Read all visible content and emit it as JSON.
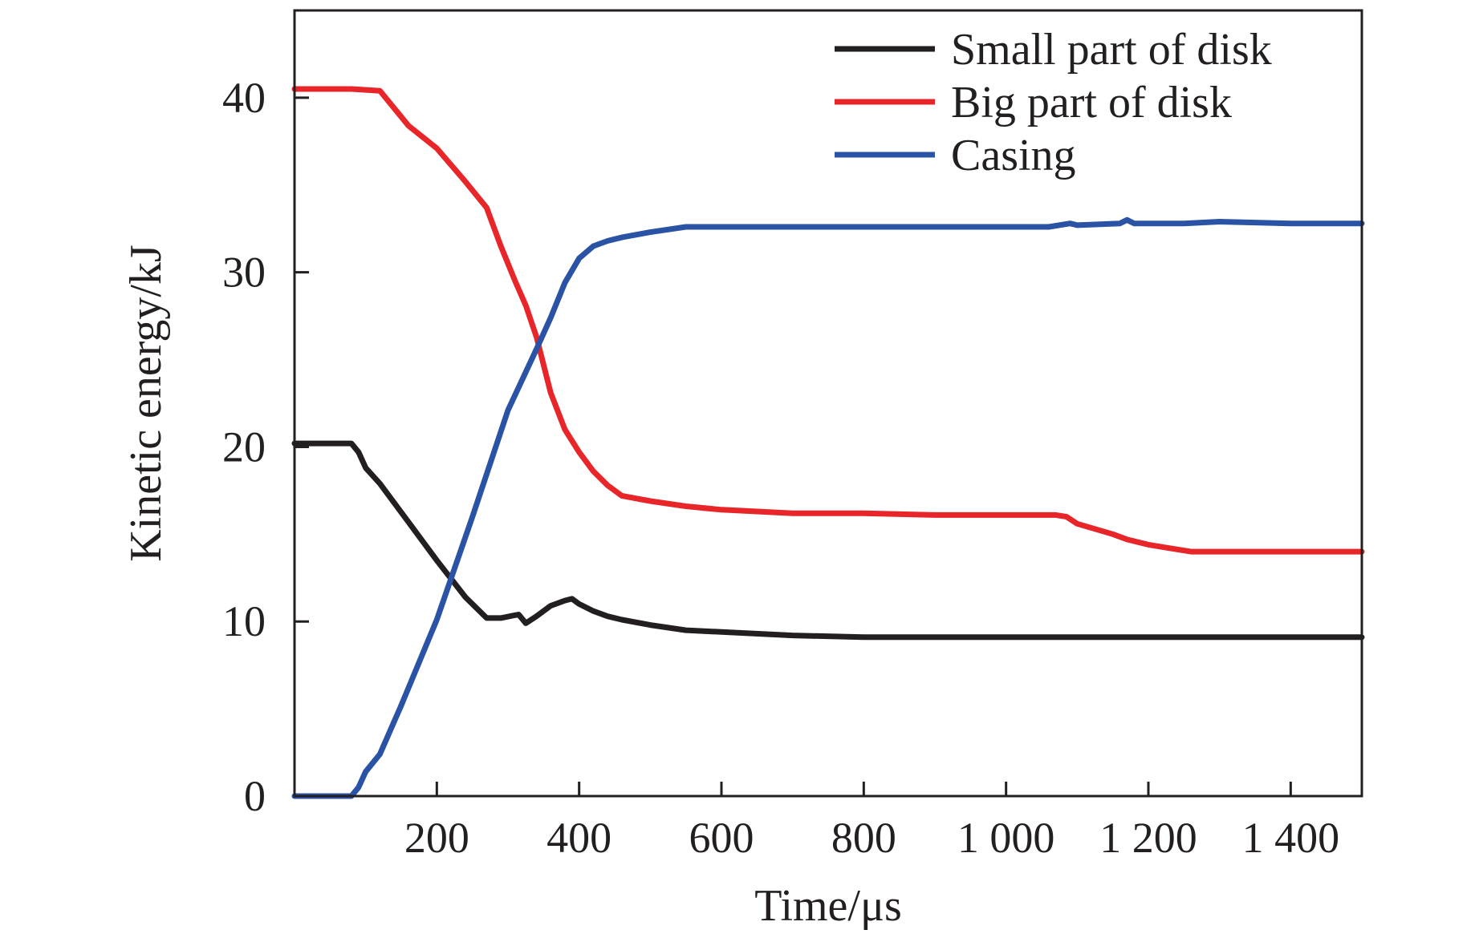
{
  "chart_data": {
    "type": "line",
    "title": "",
    "xlabel": "Time/μs",
    "ylabel": "Kinetic energy/kJ",
    "xlim": [
      0,
      1500
    ],
    "ylim": [
      0,
      45
    ],
    "x_ticks": [
      {
        "value": 200,
        "label": "200"
      },
      {
        "value": 400,
        "label": "400"
      },
      {
        "value": 600,
        "label": "600"
      },
      {
        "value": 800,
        "label": "800"
      },
      {
        "value": 1000,
        "label": "1 000"
      },
      {
        "value": 1200,
        "label": "1 200"
      },
      {
        "value": 1400,
        "label": "1 400"
      }
    ],
    "y_ticks": [
      {
        "value": 0,
        "label": "0"
      },
      {
        "value": 10,
        "label": "10"
      },
      {
        "value": 20,
        "label": "20"
      },
      {
        "value": 30,
        "label": "30"
      },
      {
        "value": 40,
        "label": "40"
      }
    ],
    "grid": false,
    "legend_position": "top-right",
    "series": [
      {
        "name": "Small part of disk",
        "color": "#231f20",
        "x": [
          0,
          80,
          90,
          100,
          120,
          160,
          200,
          240,
          270,
          290,
          315,
          325,
          340,
          360,
          380,
          390,
          400,
          420,
          440,
          460,
          500,
          550,
          600,
          700,
          800,
          900,
          1000,
          1100,
          1200,
          1300,
          1400,
          1500
        ],
        "y": [
          20.2,
          20.2,
          19.7,
          18.8,
          17.9,
          15.7,
          13.5,
          11.4,
          10.2,
          10.2,
          10.4,
          9.9,
          10.3,
          10.9,
          11.2,
          11.3,
          11.0,
          10.6,
          10.3,
          10.1,
          9.8,
          9.5,
          9.4,
          9.2,
          9.1,
          9.1,
          9.1,
          9.1,
          9.1,
          9.1,
          9.1,
          9.1
        ]
      },
      {
        "name": "Big part of disk",
        "color": "#e8262a",
        "x": [
          0,
          80,
          120,
          160,
          200,
          240,
          270,
          290,
          310,
          325,
          340,
          360,
          380,
          400,
          420,
          440,
          460,
          500,
          550,
          600,
          700,
          800,
          900,
          1000,
          1070,
          1085,
          1100,
          1150,
          1170,
          1200,
          1230,
          1260,
          1300,
          1400,
          1500
        ],
        "y": [
          40.5,
          40.5,
          40.4,
          38.4,
          37.1,
          35.2,
          33.7,
          31.5,
          29.5,
          28.1,
          26.3,
          23.1,
          21.0,
          19.7,
          18.6,
          17.8,
          17.2,
          16.9,
          16.6,
          16.4,
          16.2,
          16.2,
          16.1,
          16.1,
          16.1,
          16.0,
          15.6,
          15.0,
          14.7,
          14.4,
          14.2,
          14.0,
          14.0,
          14.0,
          14.0
        ]
      },
      {
        "name": "Casing",
        "color": "#2a52a5",
        "x": [
          0,
          80,
          90,
          100,
          120,
          150,
          200,
          250,
          300,
          340,
          360,
          380,
          400,
          420,
          440,
          460,
          500,
          550,
          600,
          700,
          800,
          900,
          1000,
          1060,
          1090,
          1100,
          1160,
          1170,
          1180,
          1250,
          1300,
          1400,
          1500
        ],
        "y": [
          0.0,
          0.0,
          0.5,
          1.4,
          2.4,
          5.2,
          10.1,
          16.0,
          22.1,
          25.6,
          27.4,
          29.4,
          30.8,
          31.5,
          31.8,
          32.0,
          32.3,
          32.6,
          32.6,
          32.6,
          32.6,
          32.6,
          32.6,
          32.6,
          32.8,
          32.7,
          32.8,
          33.0,
          32.8,
          32.8,
          32.9,
          32.8,
          32.8
        ]
      }
    ]
  }
}
